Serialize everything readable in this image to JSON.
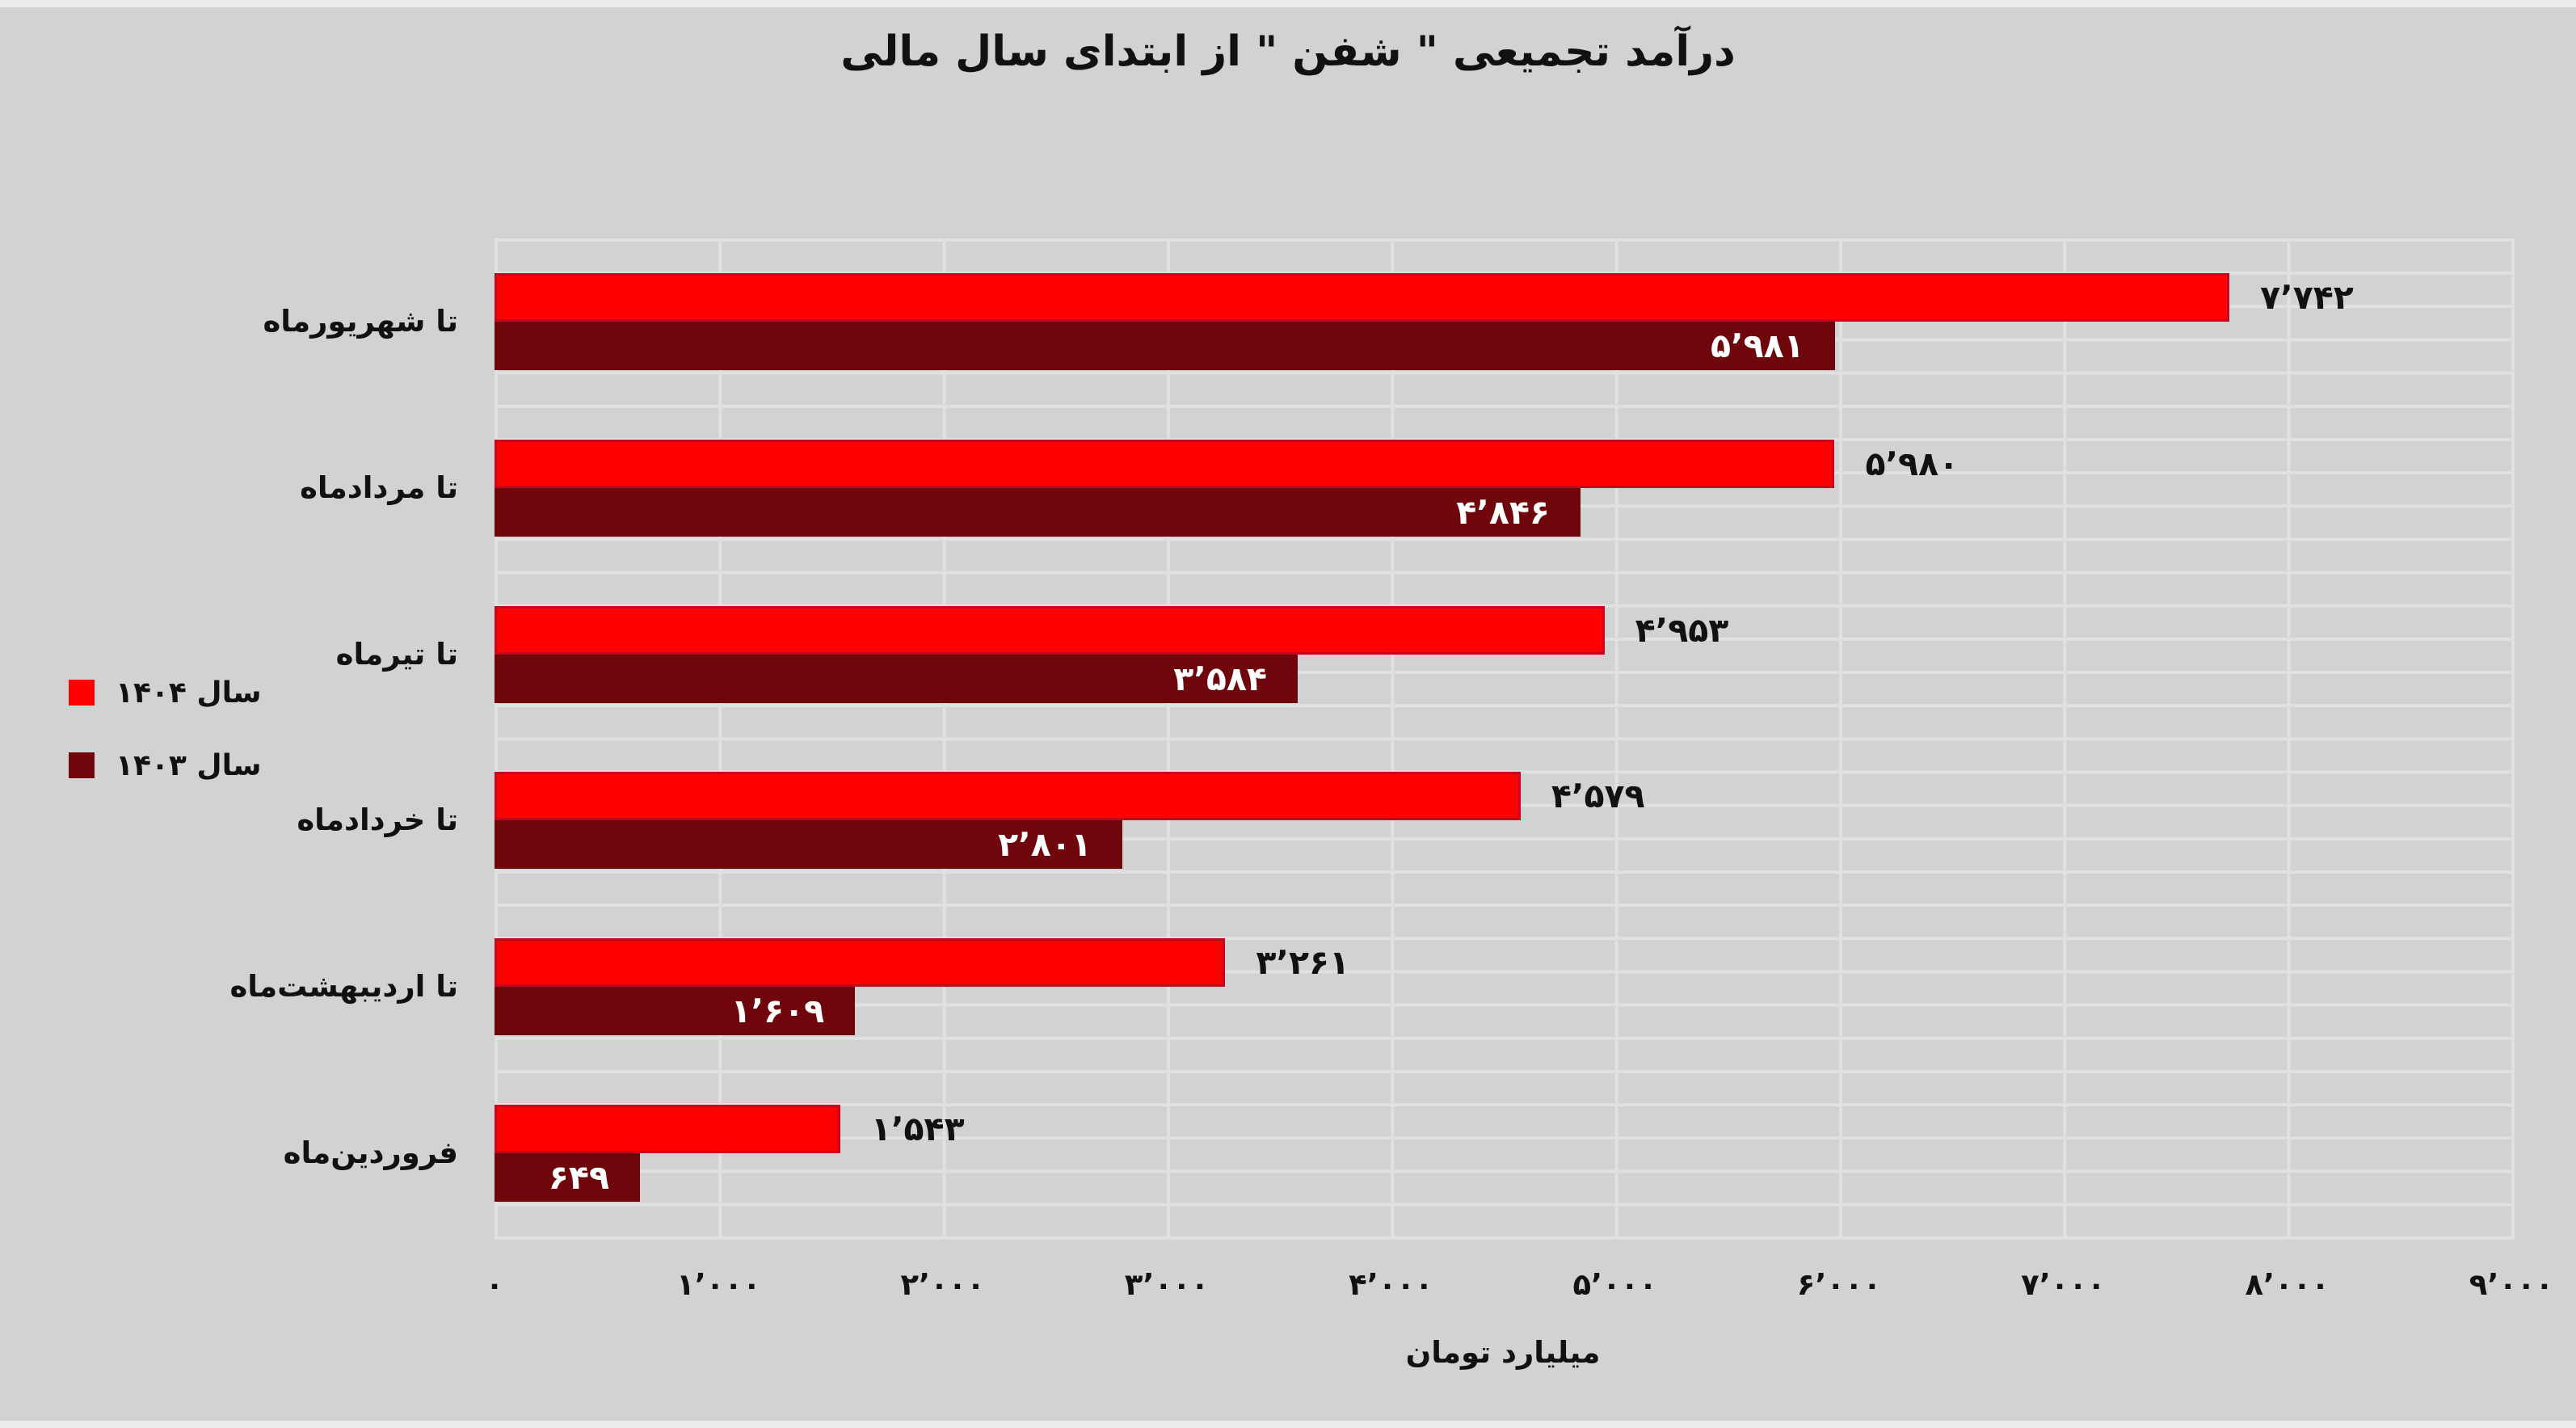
{
  "chart_data": {
    "type": "bar",
    "orientation": "horizontal",
    "title": "درآمد تجمیعی \" شفن \" از ابتدای سال مالی",
    "xlabel": "میلیارد تومان",
    "categories": [
      "تا شهریورماه",
      "تا مردادماه",
      "تا تیرماه",
      "تا خردادماه",
      "تا اردیبهشت‌ماه",
      "فروردین‌ماه"
    ],
    "series": [
      {
        "name": "سال ۱۴۰۴",
        "color": "#fe0100",
        "border_color": "#c5041f",
        "values": [
          7742,
          5980,
          4953,
          4579,
          3261,
          1543
        ],
        "value_labels": [
          "۷٬۷۴۲",
          "۵٬۹۸۰",
          "۴٬۹۵۳",
          "۴٬۵۷۹",
          "۳٬۲۶۱",
          "۱٬۵۴۳"
        ],
        "label_position": "outside",
        "label_color": "#111111"
      },
      {
        "name": "سال ۱۴۰۳",
        "color": "#6e060b",
        "values": [
          5981,
          4846,
          3584,
          2801,
          1609,
          649
        ],
        "value_labels": [
          "۵٬۹۸۱",
          "۴٬۸۴۶",
          "۳٬۵۸۴",
          "۲٬۸۰۱",
          "۱٬۶۰۹",
          "۶۴۹"
        ],
        "label_position": "inside",
        "label_color": "#ffffff"
      }
    ],
    "xlim": [
      0,
      9000
    ],
    "x_ticks": [
      0,
      1000,
      2000,
      3000,
      4000,
      5000,
      6000,
      7000,
      8000,
      9000
    ],
    "x_tick_labels": [
      "۰",
      "۱٬۰۰۰",
      "۲٬۰۰۰",
      "۳٬۰۰۰",
      "۴٬۰۰۰",
      "۵٬۰۰۰",
      "۶٬۰۰۰",
      "۷٬۰۰۰",
      "۸٬۰۰۰",
      "۹٬۰۰۰"
    ],
    "grid": true,
    "legend_position": "left",
    "colors": {
      "background": "#d2d2d2",
      "gridline": "#e0e0e0",
      "text": "#111111"
    }
  }
}
